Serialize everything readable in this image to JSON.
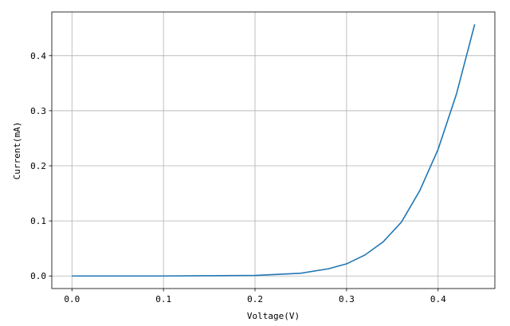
{
  "chart_data": {
    "type": "line",
    "x_label": "Voltage(V)",
    "y_label": "Current(mA)",
    "x": [
      0,
      0.05,
      0.1,
      0.15,
      0.2,
      0.25,
      0.28,
      0.3,
      0.32,
      0.34,
      0.36,
      0.38,
      0.4,
      0.42,
      0.44
    ],
    "series": [
      {
        "color": "#1f77b4",
        "values": [
          0,
          0,
          0,
          0.0005,
          0.001,
          0.005,
          0.013,
          0.022,
          0.038,
          0.062,
          0.098,
          0.155,
          0.23,
          0.33,
          0.457
        ]
      }
    ],
    "xlim": [
      -0.022,
      0.462
    ],
    "xticks": [
      {
        "value": 0,
        "label": "0.0"
      },
      0.1,
      0.2,
      0.3,
      0.4
    ],
    "ylim": [
      -0.0228,
      0.4793
    ],
    "yticks": [
      {
        "value": 0,
        "label": "0.0"
      },
      0.1,
      0.2,
      0.3,
      0.4
    ],
    "grid": true
  }
}
